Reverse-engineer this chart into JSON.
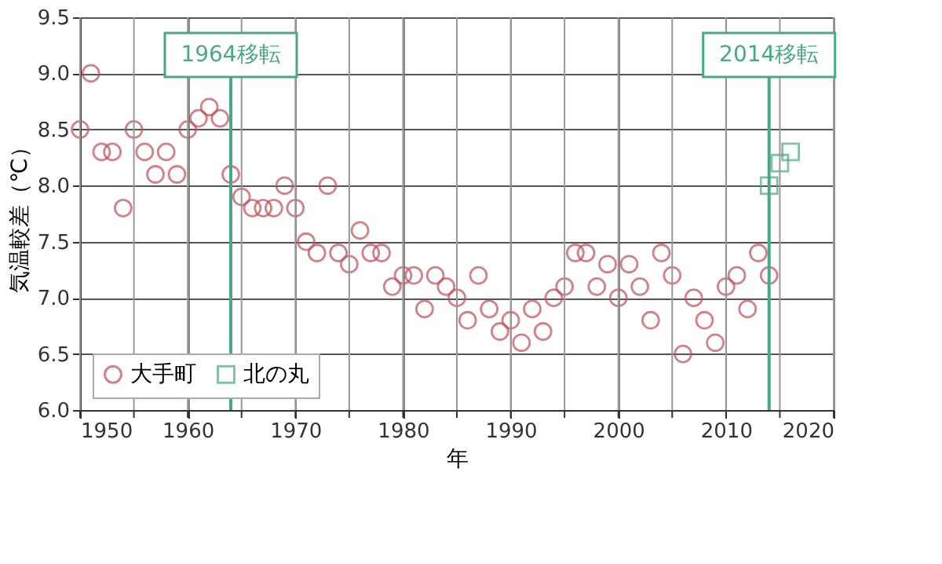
{
  "chart_data": {
    "type": "scatter",
    "xlabel": "年",
    "ylabel": "気温較差（℃）",
    "xlim": [
      1950,
      2020
    ],
    "ylim": [
      6.0,
      9.5
    ],
    "xticks": [
      1950,
      {
        "value": 1955,
        "label": null
      },
      1960,
      {
        "value": 1965,
        "label": null
      },
      1970,
      {
        "value": 1975,
        "label": null
      },
      1980,
      {
        "value": 1985,
        "label": null
      },
      1990,
      {
        "value": 1995,
        "label": null
      },
      2000,
      {
        "value": 2005,
        "label": null
      },
      2010,
      {
        "value": 2015,
        "label": null
      },
      2020
    ],
    "yticks": [
      {
        "value": 6.0,
        "label": "6.0"
      },
      6.5,
      {
        "value": 7.0,
        "label": "7.0"
      },
      7.5,
      {
        "value": 8.0,
        "label": "8.0"
      },
      8.5,
      {
        "value": 9.0,
        "label": "9.0"
      },
      9.5
    ],
    "grid": true,
    "legend": "bottom left",
    "series": [
      {
        "name": "大手町",
        "color": "#c0505a",
        "marker": "circle",
        "x": [
          1950,
          1951,
          1952,
          1953,
          1954,
          1955,
          1956,
          1957,
          1958,
          1959,
          1960,
          1961,
          1962,
          1963,
          1964,
          1965,
          1966,
          1967,
          1968,
          1969,
          1970,
          1971,
          1972,
          1973,
          1974,
          1975,
          1976,
          1977,
          1978,
          1979,
          1980,
          1981,
          1982,
          1983,
          1984,
          1985,
          1986,
          1987,
          1988,
          1989,
          1990,
          1991,
          1992,
          1993,
          1994,
          1995,
          1996,
          1997,
          1998,
          1999,
          2000,
          2001,
          2002,
          2003,
          2004,
          2005,
          2006,
          2007,
          2008,
          2009,
          2010,
          2011,
          2012,
          2013,
          2014
        ],
        "values": [
          8.5,
          9.0,
          8.3,
          8.3,
          7.8,
          8.5,
          8.3,
          8.1,
          8.3,
          8.1,
          8.5,
          8.6,
          8.7,
          8.6,
          8.1,
          7.9,
          7.8,
          7.8,
          7.8,
          8.0,
          7.8,
          7.5,
          7.4,
          8.0,
          7.4,
          7.3,
          7.6,
          7.4,
          7.4,
          7.1,
          7.2,
          7.2,
          6.9,
          7.2,
          7.1,
          7.0,
          6.8,
          7.2,
          6.9,
          6.7,
          6.8,
          6.6,
          6.9,
          6.7,
          7.0,
          7.1,
          7.4,
          7.4,
          7.1,
          7.3,
          7.0,
          7.3,
          7.1,
          6.8,
          7.4,
          7.2,
          6.5,
          7.0,
          6.8,
          6.6,
          7.1,
          7.2,
          6.9,
          7.4,
          7.2
        ]
      },
      {
        "name": "北の丸",
        "color": "#4aa88a",
        "marker": "square",
        "x": [
          2014,
          2015,
          2016
        ],
        "values": [
          8.0,
          8.2,
          8.3
        ]
      }
    ],
    "ref_lines": [
      {
        "axis": "x",
        "value": 1964,
        "label": "1964移転",
        "color": "#4aa88a"
      },
      {
        "axis": "x",
        "value": 2014,
        "label": "2014移転",
        "color": "#4aa88a"
      }
    ]
  }
}
